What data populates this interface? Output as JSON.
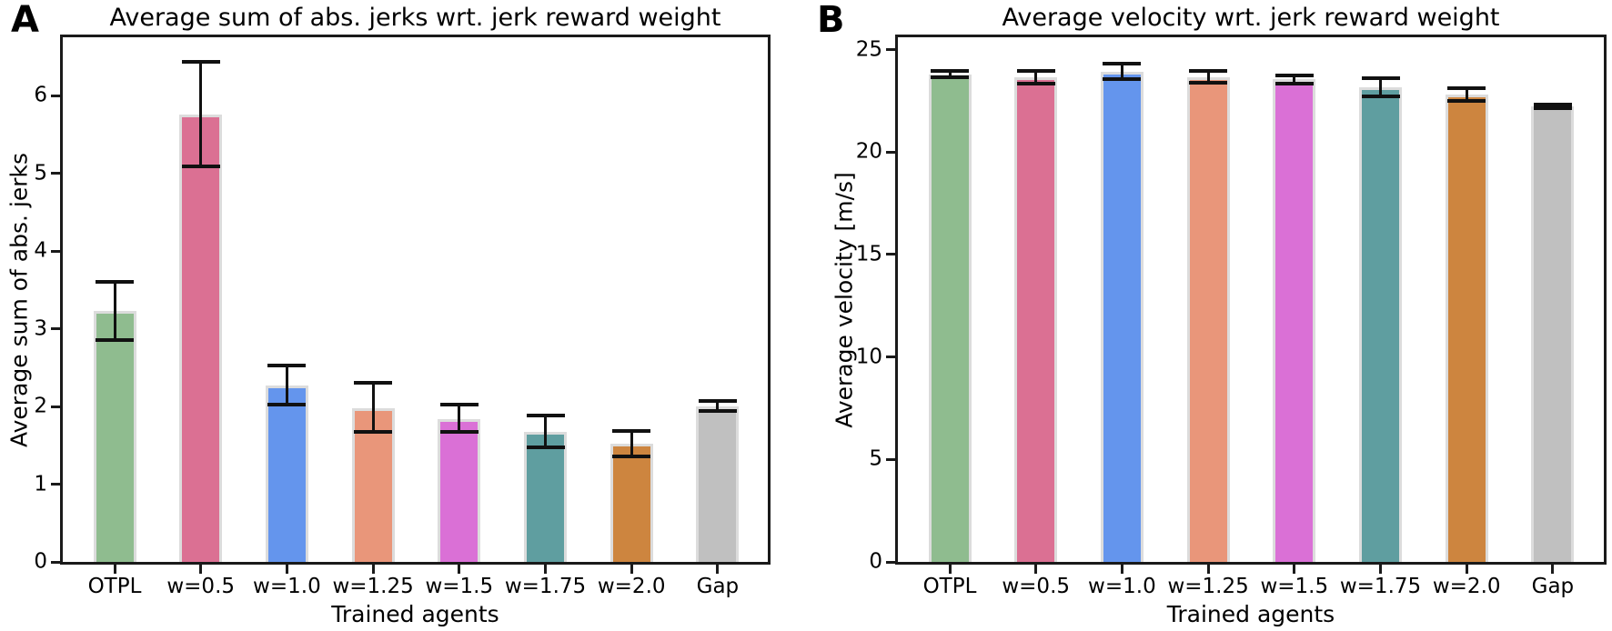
{
  "figure": {
    "panels": [
      {
        "letter": "A"
      },
      {
        "letter": "B"
      }
    ]
  },
  "chart_data": [
    {
      "type": "bar",
      "title": "Average sum of abs. jerks wrt. jerk reward weight",
      "xlabel": "Trained agents",
      "ylabel": "Average sum of abs. jerks",
      "categories": [
        "OTPL",
        "w=0.5",
        "w=1.0",
        "w=1.25",
        "w=1.5",
        "w=1.75",
        "w=2.0",
        "Gap"
      ],
      "values": [
        3.23,
        5.76,
        2.27,
        1.98,
        1.84,
        1.67,
        1.52,
        2.0
      ],
      "error_low": [
        2.86,
        5.09,
        2.02,
        1.67,
        1.67,
        1.47,
        1.36,
        1.94
      ],
      "error_high": [
        3.6,
        6.43,
        2.53,
        2.3,
        2.02,
        1.88,
        1.69,
        2.07
      ],
      "yticks": [
        0,
        1,
        2,
        3,
        4,
        5,
        6
      ],
      "ylim": [
        0,
        6.75
      ],
      "grid": false,
      "legend": false
    },
    {
      "type": "bar",
      "title": "Average velocity wrt. jerk reward weight",
      "xlabel": "Trained agents",
      "ylabel": "Average velocity [m/s]",
      "categories": [
        "OTPL",
        "w=0.5",
        "w=1.0",
        "w=1.25",
        "w=1.5",
        "w=1.75",
        "w=2.0",
        "Gap"
      ],
      "values": [
        23.8,
        23.65,
        23.9,
        23.65,
        23.55,
        23.15,
        22.8,
        22.25
      ],
      "error_low": [
        23.65,
        23.35,
        23.55,
        23.4,
        23.35,
        22.7,
        22.5,
        22.15
      ],
      "error_high": [
        23.95,
        23.95,
        24.3,
        23.95,
        23.75,
        23.6,
        23.1,
        22.3
      ],
      "yticks": [
        0,
        5,
        10,
        15,
        20,
        25
      ],
      "ylim": [
        0,
        25.6
      ],
      "grid": false,
      "legend": false
    }
  ],
  "style": {
    "bar_colors": [
      "#8fbc8f",
      "#db7093",
      "#6495ed",
      "#e9967a",
      "#da70d6",
      "#5f9ea0",
      "#cd853f",
      "#c0c0c0"
    ],
    "bar_edge_color": "#dcdcdc",
    "error_bar_color": "#111111",
    "axis_color": "#1a1a1a",
    "text_color": "#000000",
    "background_color": "#ffffff"
  }
}
